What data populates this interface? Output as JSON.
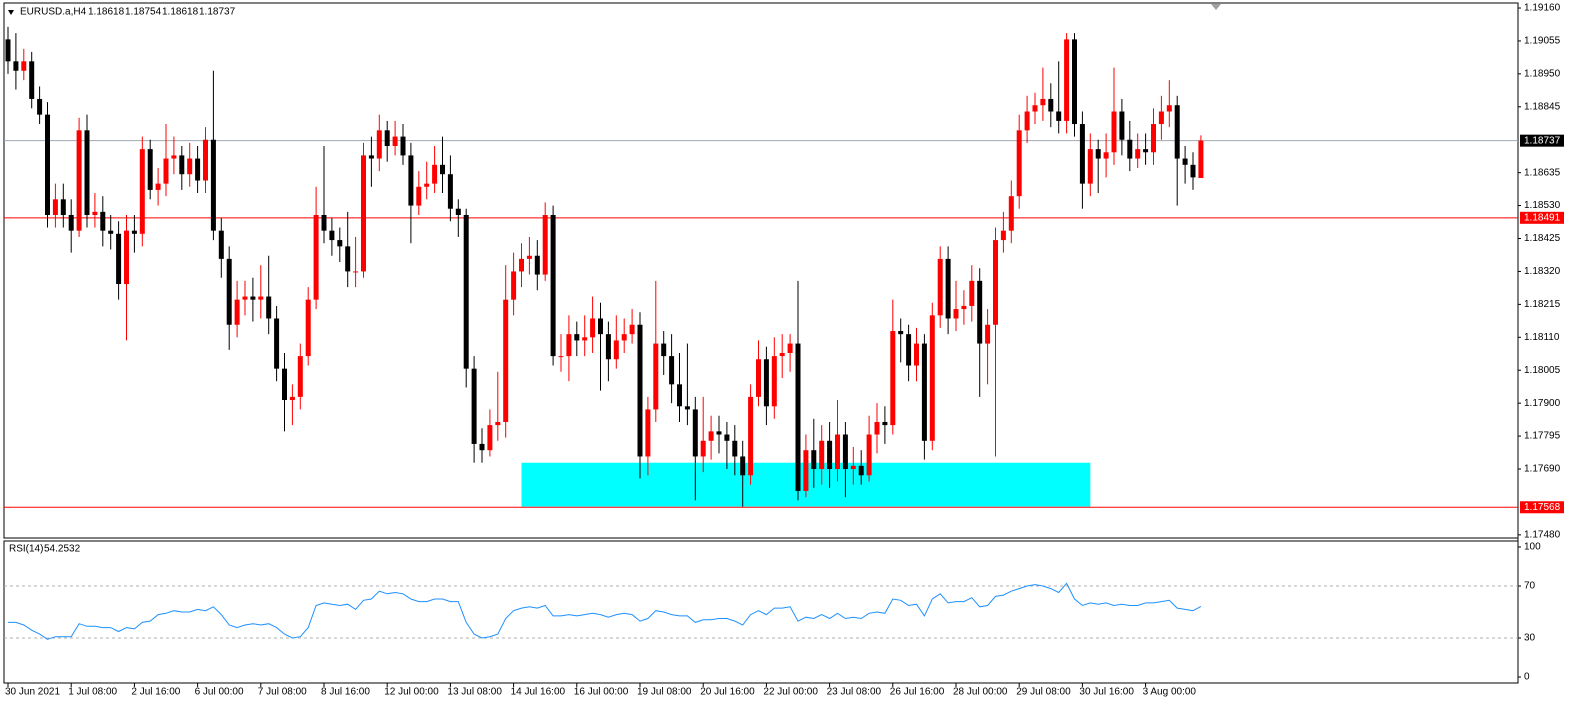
{
  "chart_data": [
    {
      "type": "candlestick",
      "symbol": "EURUSD.a,H4",
      "up_color": "#ff0000",
      "down_color": "#000000",
      "categories": [
        "30 Jun 2021",
        null,
        null,
        null,
        null,
        null,
        null,
        null,
        "1 Jul 08:00",
        null,
        null,
        null,
        null,
        null,
        null,
        null,
        "2 Jul 16:00",
        null,
        null,
        null,
        null,
        null,
        null,
        null,
        "6 Jul 00:00",
        null,
        null,
        null,
        null,
        null,
        null,
        null,
        "7 Jul 08:00",
        null,
        null,
        null,
        null,
        null,
        null,
        null,
        "8 Jul 16:00",
        null,
        null,
        null,
        null,
        null,
        null,
        null,
        "12 Jul 00:00",
        null,
        null,
        null,
        null,
        null,
        null,
        null,
        "13 Jul 08:00",
        null,
        null,
        null,
        null,
        null,
        null,
        null,
        "14 Jul 16:00",
        null,
        null,
        null,
        null,
        null,
        null,
        null,
        "16 Jul 00:00",
        null,
        null,
        null,
        null,
        null,
        null,
        null,
        "19 Jul 08:00",
        null,
        null,
        null,
        null,
        null,
        null,
        null,
        "20 Jul 16:00",
        null,
        null,
        null,
        null,
        null,
        null,
        null,
        "22 Jul 00:00",
        null,
        null,
        null,
        null,
        null,
        null,
        null,
        "23 Jul 08:00",
        null,
        null,
        null,
        null,
        null,
        null,
        null,
        "26 Jul 16:00",
        null,
        null,
        null,
        null,
        null,
        null,
        null,
        "28 Jul 00:00",
        null,
        null,
        null,
        null,
        null,
        null,
        null,
        "29 Jul 08:00",
        null,
        null,
        null,
        null,
        null,
        null,
        null,
        "30 Jul 16:00",
        null,
        null,
        null,
        null,
        null,
        null,
        null,
        "3 Aug 00:00",
        null,
        null,
        null,
        null,
        null,
        null,
        null
      ],
      "open": [
        1.1906,
        1.1899,
        1.1896,
        1.1899,
        1.1887,
        1.1882,
        1.185,
        1.1855,
        1.185,
        1.1845,
        1.1877,
        1.185,
        1.1851,
        1.1845,
        1.1844,
        1.1828,
        1.1845,
        1.1844,
        1.1871,
        1.1858,
        1.186,
        1.1868,
        1.1869,
        1.1863,
        1.1868,
        1.1861,
        1.1874,
        1.1845,
        1.1836,
        1.1815,
        1.1823,
        1.1824,
        1.1823,
        1.1824,
        1.1817,
        1.1801,
        1.1791,
        1.1792,
        1.1805,
        1.1823,
        1.185,
        1.1845,
        1.1842,
        1.184,
        1.1832,
        1.1832,
        1.1869,
        1.1868,
        1.1877,
        1.1872,
        1.1875,
        1.1869,
        1.1853,
        1.1859,
        1.186,
        1.1866,
        1.1863,
        1.1852,
        1.185,
        1.1801,
        1.1777,
        1.1775,
        1.1783,
        1.1784,
        1.1823,
        1.1832,
        1.1836,
        1.1837,
        1.1831,
        1.185,
        1.1805,
        1.1805,
        1.1812,
        1.181,
        1.1811,
        1.1817,
        1.1812,
        1.1804,
        1.181,
        1.1812,
        1.1815,
        1.1773,
        1.1788,
        1.1809,
        1.1805,
        1.1796,
        1.1789,
        1.1788,
        1.1773,
        1.1778,
        1.1781,
        1.178,
        1.1778,
        1.1773,
        1.1767,
        1.1792,
        1.1804,
        1.1789,
        1.1805,
        1.1806,
        1.1809,
        1.1762,
        1.1775,
        1.1769,
        1.1778,
        1.1769,
        1.178,
        1.1769,
        1.177,
        1.1767,
        1.178,
        1.1784,
        1.1783,
        1.1813,
        1.1812,
        1.1802,
        1.1809,
        1.1778,
        1.1818,
        1.1836,
        1.1817,
        1.182,
        1.1821,
        1.1829,
        1.1809,
        1.1815,
        1.1842,
        1.1845,
        1.1856,
        1.1877,
        1.1883,
        1.1885,
        1.1887,
        1.1883,
        1.188,
        1.1906,
        1.1879,
        1.186,
        1.1871,
        1.1868,
        1.187,
        1.1883,
        1.1874,
        1.1868,
        1.1871,
        1.187,
        1.1879,
        1.1883,
        1.1885,
        1.1868,
        1.1866,
        1.18618
      ],
      "high": [
        1.191,
        1.1908,
        1.1903,
        1.1902,
        1.1891,
        1.1886,
        1.186,
        1.186,
        1.1855,
        1.1881,
        1.1882,
        1.1857,
        1.1856,
        1.185,
        1.1848,
        1.185,
        1.185,
        1.1875,
        1.1874,
        1.1865,
        1.1879,
        1.1875,
        1.1872,
        1.1873,
        1.1872,
        1.1878,
        1.1896,
        1.1849,
        1.184,
        1.1829,
        1.1829,
        1.183,
        1.1834,
        1.1837,
        1.1821,
        1.1806,
        1.1796,
        1.1809,
        1.1827,
        1.1859,
        1.1872,
        1.1849,
        1.1846,
        1.1851,
        1.1843,
        1.1873,
        1.1875,
        1.1882,
        1.188,
        1.188,
        1.1879,
        1.1873,
        1.1864,
        1.1867,
        1.1872,
        1.1875,
        1.1869,
        1.1855,
        1.1852,
        1.1805,
        1.1782,
        1.1788,
        1.18,
        1.1834,
        1.1838,
        1.1841,
        1.1843,
        1.1842,
        1.1854,
        1.1853,
        1.1812,
        1.1818,
        1.1816,
        1.1818,
        1.1824,
        1.1822,
        1.1816,
        1.1818,
        1.1817,
        1.182,
        1.1819,
        1.1792,
        1.1829,
        1.1813,
        1.1812,
        1.1806,
        1.1809,
        1.1792,
        1.1792,
        1.1786,
        1.1786,
        1.1784,
        1.1783,
        1.1778,
        1.1796,
        1.181,
        1.1808,
        1.1811,
        1.1812,
        1.1812,
        1.1829,
        1.178,
        1.1785,
        1.1783,
        1.1784,
        1.1791,
        1.1784,
        1.1776,
        1.1775,
        1.1786,
        1.179,
        1.1789,
        1.1823,
        1.1817,
        1.1815,
        1.1814,
        1.1812,
        1.1822,
        1.184,
        1.184,
        1.1829,
        1.1826,
        1.1834,
        1.1833,
        1.182,
        1.1846,
        1.1851,
        1.1861,
        1.1882,
        1.1888,
        1.1889,
        1.1897,
        1.1892,
        1.1899,
        1.1908,
        1.1908,
        1.1883,
        1.1876,
        1.1874,
        1.1876,
        1.1897,
        1.1887,
        1.188,
        1.1876,
        1.1876,
        1.1884,
        1.1888,
        1.1893,
        1.1888,
        1.1872,
        1.187,
        1.18754
      ],
      "low": [
        1.1895,
        1.189,
        1.1893,
        1.1884,
        1.1879,
        1.1846,
        1.1846,
        1.1846,
        1.1838,
        1.1843,
        1.1846,
        1.1846,
        1.184,
        1.1839,
        1.1823,
        1.181,
        1.1838,
        1.184,
        1.1855,
        1.1853,
        1.1856,
        1.1863,
        1.1858,
        1.1859,
        1.1857,
        1.1857,
        1.1842,
        1.183,
        1.1807,
        1.1811,
        1.1818,
        1.1816,
        1.1817,
        1.1812,
        1.1797,
        1.1781,
        1.1783,
        1.1788,
        1.1802,
        1.182,
        1.1841,
        1.1837,
        1.1835,
        1.1827,
        1.1827,
        1.183,
        1.1859,
        1.1864,
        1.1867,
        1.1869,
        1.1866,
        1.1841,
        1.185,
        1.1855,
        1.1857,
        1.1857,
        1.1848,
        1.1843,
        1.1795,
        1.1771,
        1.1771,
        1.1773,
        1.1778,
        1.1779,
        1.1818,
        1.1827,
        1.1831,
        1.1826,
        1.1829,
        1.1802,
        1.18,
        1.1797,
        1.1805,
        1.1805,
        1.1806,
        1.1794,
        1.1797,
        1.1801,
        1.1806,
        1.1809,
        1.1766,
        1.1767,
        1.1784,
        1.1799,
        1.179,
        1.1784,
        1.1783,
        1.1759,
        1.1768,
        1.1772,
        1.1774,
        1.1769,
        1.1767,
        1.1757,
        1.1764,
        1.1789,
        1.1783,
        1.1785,
        1.1798,
        1.18,
        1.1759,
        1.176,
        1.1763,
        1.1764,
        1.1763,
        1.1765,
        1.176,
        1.1764,
        1.1764,
        1.1765,
        1.1774,
        1.1777,
        1.178,
        1.1803,
        1.1797,
        1.1797,
        1.1772,
        1.1775,
        1.1814,
        1.1812,
        1.1813,
        1.1815,
        1.1816,
        1.1792,
        1.1796,
        1.1773,
        1.1838,
        1.1841,
        1.1852,
        1.1873,
        1.1879,
        1.188,
        1.1878,
        1.1876,
        1.1876,
        1.1875,
        1.1852,
        1.1856,
        1.1857,
        1.1862,
        1.1866,
        1.1869,
        1.1864,
        1.1865,
        1.1866,
        1.1866,
        1.1874,
        1.1878,
        1.1853,
        1.186,
        1.1858,
        1.18618
      ],
      "close": [
        1.1899,
        1.1896,
        1.1899,
        1.1887,
        1.1882,
        1.185,
        1.1855,
        1.185,
        1.1845,
        1.1877,
        1.185,
        1.1851,
        1.1845,
        1.1844,
        1.1828,
        1.1845,
        1.1844,
        1.1871,
        1.1858,
        1.186,
        1.1868,
        1.1869,
        1.1863,
        1.1868,
        1.1861,
        1.1874,
        1.1845,
        1.1836,
        1.1815,
        1.1823,
        1.1824,
        1.1823,
        1.1824,
        1.1817,
        1.1801,
        1.1791,
        1.1792,
        1.1805,
        1.1823,
        1.185,
        1.1845,
        1.1842,
        1.184,
        1.1832,
        1.1832,
        1.1869,
        1.1868,
        1.1877,
        1.1872,
        1.1875,
        1.1869,
        1.1853,
        1.1859,
        1.186,
        1.1866,
        1.1863,
        1.1852,
        1.185,
        1.1801,
        1.1777,
        1.1775,
        1.1783,
        1.1784,
        1.1823,
        1.1832,
        1.1836,
        1.1837,
        1.1831,
        1.185,
        1.1805,
        1.1805,
        1.1812,
        1.181,
        1.1811,
        1.1817,
        1.1812,
        1.1804,
        1.181,
        1.1812,
        1.1815,
        1.1773,
        1.1788,
        1.1809,
        1.1805,
        1.1796,
        1.1789,
        1.1788,
        1.1773,
        1.1778,
        1.1781,
        1.178,
        1.1778,
        1.1773,
        1.1767,
        1.1792,
        1.1804,
        1.1789,
        1.1805,
        1.1806,
        1.1809,
        1.1762,
        1.1775,
        1.1769,
        1.1778,
        1.1769,
        1.178,
        1.1769,
        1.177,
        1.1767,
        1.178,
        1.1784,
        1.1783,
        1.1813,
        1.1812,
        1.1802,
        1.1809,
        1.1778,
        1.1818,
        1.1836,
        1.1817,
        1.182,
        1.1821,
        1.1829,
        1.1809,
        1.1815,
        1.1842,
        1.1845,
        1.1856,
        1.1877,
        1.1883,
        1.1885,
        1.1887,
        1.1883,
        1.188,
        1.1906,
        1.1879,
        1.186,
        1.1871,
        1.1868,
        1.187,
        1.1883,
        1.1874,
        1.1868,
        1.1871,
        1.187,
        1.1879,
        1.1883,
        1.1885,
        1.1868,
        1.1866,
        1.1862,
        1.18737
      ],
      "ylim": [
        1.1747,
        1.19176
      ],
      "yticks": [
        {
          "value": 1.1916,
          "label": "1.19160"
        },
        1.19055,
        {
          "value": 1.1895,
          "label": "1.18950"
        },
        1.18845,
        1.18635,
        {
          "value": 1.1853,
          "label": "1.18530"
        },
        1.18425,
        {
          "value": 1.1832,
          "label": "1.18320"
        },
        1.18215,
        {
          "value": 1.1811,
          "label": "1.18110"
        },
        1.18005,
        {
          "value": 1.179,
          "label": "1.17900"
        },
        1.17795,
        {
          "value": 1.1769,
          "label": "1.17690"
        },
        {
          "value": 1.1748,
          "label": "1.17480"
        }
      ],
      "hlines": [
        {
          "value": 1.18737,
          "color": "#a0a8b0",
          "label_color": "#000000"
        },
        {
          "value": 1.18491,
          "color": "#ff0000",
          "label_color": "#ff0000"
        },
        {
          "value": 1.17568,
          "color": "#ff0000",
          "label_color": "#ff0000"
        }
      ],
      "zone": {
        "x": [
          65,
          137
        ],
        "y": [
          1.1757,
          1.1771
        ],
        "color": "#00ffff"
      }
    },
    {
      "type": "line",
      "name": "RSI(14)",
      "color": "#1e90ff",
      "values": [
        42,
        42,
        40,
        36,
        33,
        29,
        31,
        31,
        31,
        41,
        39,
        39,
        38,
        38,
        35,
        38,
        37,
        42,
        43,
        48,
        49,
        51,
        50,
        50,
        52,
        51,
        54,
        48,
        40,
        38,
        40,
        41,
        40,
        41,
        38,
        33,
        30,
        31,
        38,
        55,
        57,
        56,
        55,
        56,
        52,
        59,
        60,
        66,
        64,
        65,
        64,
        60,
        58,
        58,
        60,
        60,
        58,
        58,
        42,
        33,
        30,
        31,
        33,
        45,
        51,
        53,
        54,
        53,
        55,
        47,
        47,
        48,
        47,
        48,
        49,
        48,
        46,
        48,
        49,
        48,
        43,
        45,
        51,
        50,
        48,
        47,
        47,
        42,
        44,
        44,
        45,
        45,
        43,
        40,
        48,
        51,
        48,
        53,
        53,
        54,
        43,
        46,
        45,
        48,
        45,
        49,
        45,
        46,
        45,
        49,
        50,
        49,
        60,
        59,
        55,
        56,
        47,
        60,
        64,
        57,
        58,
        58,
        61,
        54,
        55,
        62,
        63,
        66,
        68,
        70,
        71,
        70,
        68,
        65,
        72,
        60,
        55,
        57,
        56,
        57,
        55,
        56,
        55,
        55,
        57,
        57,
        58,
        59,
        53,
        52,
        51,
        54.2532
      ],
      "ylim": [
        -4.6,
        104.6
      ],
      "yticks": [
        0,
        30,
        70,
        100
      ],
      "levels": [
        30,
        70
      ]
    }
  ]
}
